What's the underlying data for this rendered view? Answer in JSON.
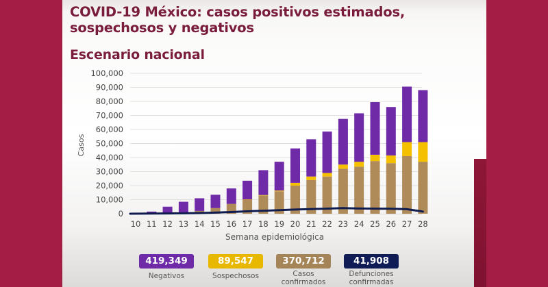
{
  "header": {
    "title": "COVID-19 México: casos positivos estimados, sospechosos y negativos",
    "subtitle": "Escenario nacional"
  },
  "colors": {
    "background": "#a31d44",
    "title": "#7a1d3c",
    "negativos": "#6f2aa8",
    "sospechosos": "#f5c000",
    "confirmados": "#b08b5a",
    "defunciones": "#101c4e"
  },
  "chart_data": {
    "type": "bar",
    "stacked": true,
    "title": "Escenario nacional",
    "xlabel": "Semana epidemiológica",
    "ylabel": "Casos",
    "ylim": [
      0,
      100000
    ],
    "yticks": [
      0,
      10000,
      20000,
      30000,
      40000,
      50000,
      60000,
      70000,
      80000,
      90000,
      100000
    ],
    "ytick_labels": [
      "0",
      "10,000",
      "20,000",
      "30,000",
      "40,000",
      "50,000",
      "60,000",
      "70,000",
      "80,000",
      "90,000",
      "100,000"
    ],
    "grid": true,
    "categories": [
      "10",
      "11",
      "12",
      "13",
      "14",
      "15",
      "16",
      "17",
      "18",
      "19",
      "20",
      "21",
      "22",
      "23",
      "24",
      "25",
      "26",
      "27",
      "28"
    ],
    "series": [
      {
        "name": "Casos confirmados",
        "kind": "bar",
        "values": [
          0,
          100,
          400,
          1000,
          2000,
          4000,
          7000,
          10000,
          13000,
          16000,
          20000,
          24000,
          26500,
          32000,
          33500,
          37500,
          36000,
          41000,
          37000
        ]
      },
      {
        "name": "Sospechosos",
        "kind": "bar",
        "values": [
          0,
          0,
          0,
          0,
          0,
          0,
          0,
          200,
          300,
          500,
          2000,
          2500,
          2500,
          3000,
          3500,
          4500,
          5500,
          10000,
          14000
        ]
      },
      {
        "name": "Negativos",
        "kind": "bar",
        "values": [
          300,
          1400,
          4600,
          7500,
          9000,
          9500,
          11000,
          13300,
          17700,
          20500,
          24500,
          26500,
          29500,
          32500,
          34500,
          37500,
          34500,
          39500,
          37000
        ]
      },
      {
        "name": "Defunciones confirmadas",
        "kind": "line",
        "values": [
          0,
          100,
          200,
          300,
          500,
          800,
          1200,
          1700,
          2100,
          2600,
          3000,
          3300,
          3600,
          4000,
          3700,
          3600,
          3500,
          3200,
          1500
        ]
      }
    ],
    "legend": [
      {
        "name": "Negativos",
        "total": "419,349"
      },
      {
        "name": "Sospechosos",
        "total": "89,547"
      },
      {
        "name": "Casos confirmados",
        "total": "370,712"
      },
      {
        "name": "Defunciones confirmadas",
        "total": "41,908"
      }
    ],
    "legend_position": "bottom"
  },
  "legend": {
    "negativos": {
      "value": "419,349",
      "label": "Negativos"
    },
    "sospechosos": {
      "value": "89,547",
      "label": "Sospechosos"
    },
    "confirmados": {
      "value": "370,712",
      "label_line1": "Casos",
      "label_line2": "confirmados"
    },
    "defunciones": {
      "value": "41,908",
      "label_line1": "Defunciones",
      "label_line2": "confirmadas"
    }
  }
}
